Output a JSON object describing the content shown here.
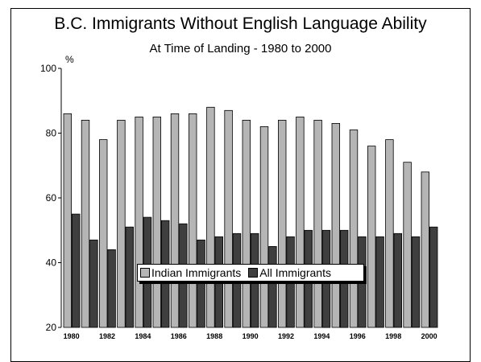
{
  "title": "B.C. Immigrants Without English Language Ability",
  "subtitle": "At Time of Landing - 1980 to 2000",
  "colors": {
    "indian": "#b5b5b5",
    "all": "#3f3f3f"
  },
  "chart_data": {
    "type": "bar",
    "title": "B.C. Immigrants Without English Language Ability",
    "subtitle": "At Time of Landing - 1980 to 2000",
    "ylabel": "%",
    "xlabel": "",
    "ylim": [
      20,
      100
    ],
    "yticks": [
      20,
      40,
      60,
      80,
      100
    ],
    "categories": [
      "1980",
      "1981",
      "1982",
      "1983",
      "1984",
      "1985",
      "1986",
      "1987",
      "1988",
      "1989",
      "1990",
      "1991",
      "1992",
      "1993",
      "1994",
      "1995",
      "1996",
      "1997",
      "1998",
      "1999",
      "2000"
    ],
    "x_tick_labels": [
      "1980",
      "",
      "1982",
      "",
      "1984",
      "",
      "1986",
      "",
      "1988",
      "",
      "1990",
      "",
      "1992",
      "",
      "1994",
      "",
      "1996",
      "",
      "1998",
      "",
      "2000"
    ],
    "series": [
      {
        "name": "Indian Immigrants",
        "values": [
          86,
          84,
          78,
          84,
          85,
          85,
          86,
          86,
          88,
          87,
          84,
          82,
          84,
          85,
          84,
          83,
          81,
          76,
          78,
          71,
          68
        ]
      },
      {
        "name": "All Immigrants",
        "values": [
          55,
          47,
          44,
          51,
          54,
          53,
          52,
          47,
          48,
          49,
          49,
          45,
          48,
          50,
          50,
          50,
          48,
          48,
          49,
          48,
          51
        ]
      }
    ],
    "legend": "bottom-center",
    "grid": false
  }
}
